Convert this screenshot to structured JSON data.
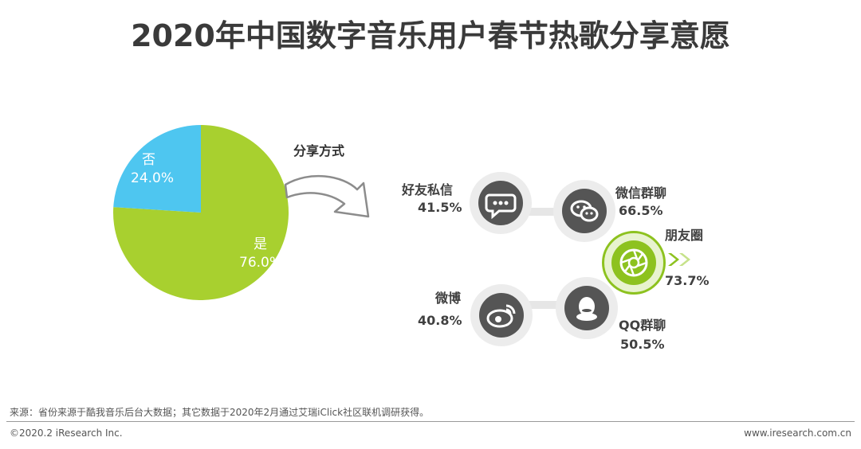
{
  "title": "2020年中国数字音乐用户春节热歌分享意愿",
  "chart_data": [
    {
      "type": "pie",
      "categories": [
        "是",
        "否"
      ],
      "values": [
        76.0,
        24.0
      ],
      "labels": [
        "76.0%",
        "24.0%"
      ],
      "colors": [
        "#a8d02f",
        "#4ec6f0"
      ]
    },
    {
      "type": "bar",
      "title": "分享方式",
      "categories": [
        "好友私信",
        "微信群聊",
        "朋友圈",
        "微博",
        "QQ群聊"
      ],
      "values": [
        41.5,
        66.5,
        73.7,
        40.8,
        50.5
      ],
      "labels": [
        "41.5%",
        "66.5%",
        "73.7%",
        "40.8%",
        "50.5%"
      ],
      "icons": [
        "chat-bubble-icon",
        "wechat-icon",
        "camera-aperture-icon",
        "weibo-icon",
        "qq-penguin-icon"
      ],
      "highlight": "朋友圈",
      "highlight_color": "#8dc21f"
    }
  ],
  "footer": {
    "source": "来源：省份来源于酷我音乐后台大数据；其它数据于2020年2月通过艾瑞iClick社区联机调研获得。",
    "copyright": "©2020.2 iResearch Inc.",
    "website": "www.iresearch.com.cn"
  }
}
